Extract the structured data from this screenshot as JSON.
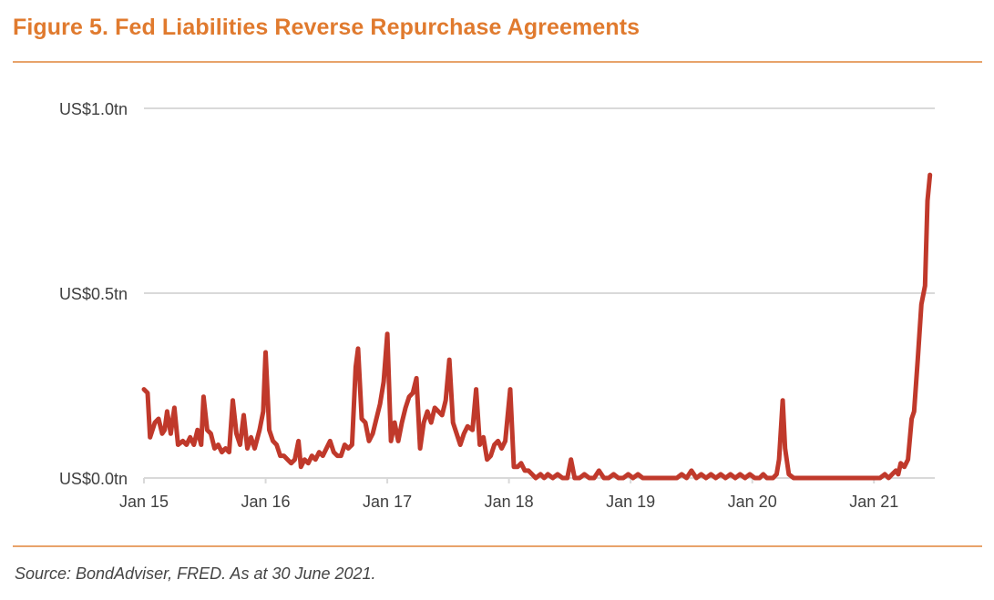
{
  "title": "Figure 5. Fed Liabilities Reverse Repurchase Agreements",
  "source": "Source: BondAdviser, FRED. As at 30 June 2021.",
  "colors": {
    "title": "#E07A2E",
    "rule": "#E8A36A",
    "series": "#C0392B",
    "grid": "#D9D9D9",
    "axis_text": "#404040"
  },
  "chart_data": {
    "type": "line",
    "title": "Fed Liabilities Reverse Repurchase Agreements",
    "xlabel": "",
    "ylabel": "",
    "ylim": [
      0,
      1.0
    ],
    "xlim": [
      2015.0,
      2021.5
    ],
    "grid": true,
    "y_ticks": [
      {
        "value": 0.0,
        "label": "US$0.0tn"
      },
      {
        "value": 0.5,
        "label": "US$0.5tn"
      },
      {
        "value": 1.0,
        "label": "US$1.0tn"
      }
    ],
    "x_ticks": [
      {
        "value": 2015,
        "label": "Jan 15"
      },
      {
        "value": 2016,
        "label": "Jan 16"
      },
      {
        "value": 2017,
        "label": "Jan 17"
      },
      {
        "value": 2018,
        "label": "Jan 18"
      },
      {
        "value": 2019,
        "label": "Jan 19"
      },
      {
        "value": 2020,
        "label": "Jan 20"
      },
      {
        "value": 2021,
        "label": "Jan 21"
      }
    ],
    "series": [
      {
        "name": "Reverse Repurchase Agreements (US$tn)",
        "points": [
          [
            2015.0,
            0.24
          ],
          [
            2015.03,
            0.23
          ],
          [
            2015.05,
            0.11
          ],
          [
            2015.09,
            0.15
          ],
          [
            2015.12,
            0.16
          ],
          [
            2015.15,
            0.12
          ],
          [
            2015.17,
            0.13
          ],
          [
            2015.19,
            0.18
          ],
          [
            2015.22,
            0.12
          ],
          [
            2015.25,
            0.19
          ],
          [
            2015.28,
            0.09
          ],
          [
            2015.32,
            0.1
          ],
          [
            2015.35,
            0.09
          ],
          [
            2015.38,
            0.11
          ],
          [
            2015.41,
            0.09
          ],
          [
            2015.44,
            0.13
          ],
          [
            2015.47,
            0.09
          ],
          [
            2015.49,
            0.22
          ],
          [
            2015.52,
            0.13
          ],
          [
            2015.55,
            0.12
          ],
          [
            2015.58,
            0.08
          ],
          [
            2015.61,
            0.09
          ],
          [
            2015.64,
            0.07
          ],
          [
            2015.67,
            0.08
          ],
          [
            2015.7,
            0.07
          ],
          [
            2015.73,
            0.21
          ],
          [
            2015.76,
            0.12
          ],
          [
            2015.79,
            0.09
          ],
          [
            2015.82,
            0.17
          ],
          [
            2015.85,
            0.08
          ],
          [
            2015.88,
            0.11
          ],
          [
            2015.91,
            0.08
          ],
          [
            2015.95,
            0.13
          ],
          [
            2015.98,
            0.18
          ],
          [
            2016.0,
            0.34
          ],
          [
            2016.03,
            0.13
          ],
          [
            2016.06,
            0.1
          ],
          [
            2016.09,
            0.09
          ],
          [
            2016.12,
            0.06
          ],
          [
            2016.15,
            0.06
          ],
          [
            2016.18,
            0.05
          ],
          [
            2016.21,
            0.04
          ],
          [
            2016.24,
            0.05
          ],
          [
            2016.27,
            0.1
          ],
          [
            2016.29,
            0.03
          ],
          [
            2016.32,
            0.05
          ],
          [
            2016.35,
            0.04
          ],
          [
            2016.38,
            0.06
          ],
          [
            2016.41,
            0.05
          ],
          [
            2016.44,
            0.07
          ],
          [
            2016.47,
            0.06
          ],
          [
            2016.5,
            0.08
          ],
          [
            2016.53,
            0.1
          ],
          [
            2016.56,
            0.07
          ],
          [
            2016.59,
            0.06
          ],
          [
            2016.62,
            0.06
          ],
          [
            2016.65,
            0.09
          ],
          [
            2016.68,
            0.08
          ],
          [
            2016.71,
            0.09
          ],
          [
            2016.74,
            0.3
          ],
          [
            2016.76,
            0.35
          ],
          [
            2016.79,
            0.16
          ],
          [
            2016.82,
            0.15
          ],
          [
            2016.85,
            0.1
          ],
          [
            2016.88,
            0.12
          ],
          [
            2016.91,
            0.16
          ],
          [
            2016.94,
            0.2
          ],
          [
            2016.97,
            0.26
          ],
          [
            2017.0,
            0.39
          ],
          [
            2017.03,
            0.1
          ],
          [
            2017.06,
            0.15
          ],
          [
            2017.09,
            0.1
          ],
          [
            2017.12,
            0.15
          ],
          [
            2017.15,
            0.19
          ],
          [
            2017.18,
            0.22
          ],
          [
            2017.21,
            0.23
          ],
          [
            2017.24,
            0.27
          ],
          [
            2017.27,
            0.08
          ],
          [
            2017.3,
            0.15
          ],
          [
            2017.33,
            0.18
          ],
          [
            2017.36,
            0.15
          ],
          [
            2017.39,
            0.19
          ],
          [
            2017.42,
            0.18
          ],
          [
            2017.45,
            0.17
          ],
          [
            2017.48,
            0.21
          ],
          [
            2017.51,
            0.32
          ],
          [
            2017.54,
            0.15
          ],
          [
            2017.57,
            0.12
          ],
          [
            2017.6,
            0.09
          ],
          [
            2017.63,
            0.12
          ],
          [
            2017.66,
            0.14
          ],
          [
            2017.7,
            0.13
          ],
          [
            2017.73,
            0.24
          ],
          [
            2017.76,
            0.09
          ],
          [
            2017.79,
            0.11
          ],
          [
            2017.82,
            0.05
          ],
          [
            2017.85,
            0.06
          ],
          [
            2017.88,
            0.09
          ],
          [
            2017.91,
            0.1
          ],
          [
            2017.94,
            0.08
          ],
          [
            2017.97,
            0.1
          ],
          [
            2018.01,
            0.24
          ],
          [
            2018.04,
            0.03
          ],
          [
            2018.07,
            0.03
          ],
          [
            2018.1,
            0.04
          ],
          [
            2018.13,
            0.02
          ],
          [
            2018.16,
            0.02
          ],
          [
            2018.19,
            0.01
          ],
          [
            2018.22,
            0.0
          ],
          [
            2018.26,
            0.01
          ],
          [
            2018.29,
            0.0
          ],
          [
            2018.32,
            0.01
          ],
          [
            2018.36,
            0.0
          ],
          [
            2018.4,
            0.01
          ],
          [
            2018.44,
            0.0
          ],
          [
            2018.48,
            0.0
          ],
          [
            2018.51,
            0.05
          ],
          [
            2018.54,
            0.0
          ],
          [
            2018.58,
            0.0
          ],
          [
            2018.62,
            0.01
          ],
          [
            2018.66,
            0.0
          ],
          [
            2018.7,
            0.0
          ],
          [
            2018.74,
            0.02
          ],
          [
            2018.78,
            0.0
          ],
          [
            2018.82,
            0.0
          ],
          [
            2018.86,
            0.01
          ],
          [
            2018.9,
            0.0
          ],
          [
            2018.94,
            0.0
          ],
          [
            2018.98,
            0.01
          ],
          [
            2019.02,
            0.0
          ],
          [
            2019.06,
            0.01
          ],
          [
            2019.1,
            0.0
          ],
          [
            2019.14,
            0.0
          ],
          [
            2019.18,
            0.0
          ],
          [
            2019.22,
            0.0
          ],
          [
            2019.26,
            0.0
          ],
          [
            2019.3,
            0.0
          ],
          [
            2019.34,
            0.0
          ],
          [
            2019.38,
            0.0
          ],
          [
            2019.42,
            0.01
          ],
          [
            2019.46,
            0.0
          ],
          [
            2019.5,
            0.02
          ],
          [
            2019.54,
            0.0
          ],
          [
            2019.58,
            0.01
          ],
          [
            2019.62,
            0.0
          ],
          [
            2019.66,
            0.01
          ],
          [
            2019.7,
            0.0
          ],
          [
            2019.74,
            0.01
          ],
          [
            2019.78,
            0.0
          ],
          [
            2019.82,
            0.01
          ],
          [
            2019.86,
            0.0
          ],
          [
            2019.9,
            0.01
          ],
          [
            2019.94,
            0.0
          ],
          [
            2019.98,
            0.01
          ],
          [
            2020.02,
            0.0
          ],
          [
            2020.06,
            0.0
          ],
          [
            2020.09,
            0.01
          ],
          [
            2020.12,
            0.0
          ],
          [
            2020.17,
            0.0
          ],
          [
            2020.2,
            0.01
          ],
          [
            2020.22,
            0.05
          ],
          [
            2020.25,
            0.21
          ],
          [
            2020.27,
            0.08
          ],
          [
            2020.3,
            0.01
          ],
          [
            2020.34,
            0.0
          ],
          [
            2020.4,
            0.0
          ],
          [
            2020.5,
            0.0
          ],
          [
            2020.6,
            0.0
          ],
          [
            2020.7,
            0.0
          ],
          [
            2020.8,
            0.0
          ],
          [
            2020.9,
            0.0
          ],
          [
            2020.95,
            0.0
          ],
          [
            2021.0,
            0.0
          ],
          [
            2021.05,
            0.0
          ],
          [
            2021.09,
            0.01
          ],
          [
            2021.12,
            0.0
          ],
          [
            2021.15,
            0.01
          ],
          [
            2021.18,
            0.02
          ],
          [
            2021.2,
            0.01
          ],
          [
            2021.22,
            0.04
          ],
          [
            2021.25,
            0.03
          ],
          [
            2021.28,
            0.05
          ],
          [
            2021.31,
            0.16
          ],
          [
            2021.33,
            0.18
          ],
          [
            2021.36,
            0.32
          ],
          [
            2021.39,
            0.47
          ],
          [
            2021.42,
            0.52
          ],
          [
            2021.44,
            0.75
          ],
          [
            2021.46,
            0.82
          ]
        ]
      }
    ]
  }
}
